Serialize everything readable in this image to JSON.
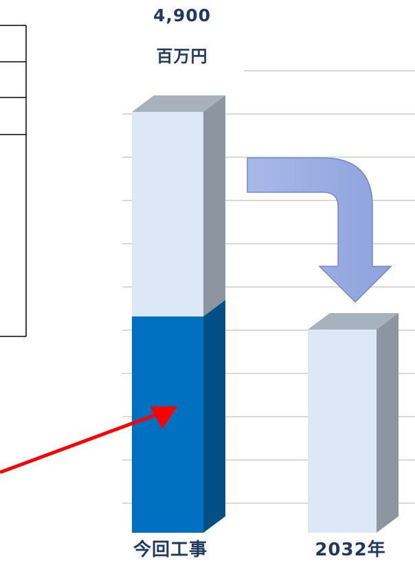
{
  "chart_data": {
    "type": "bar",
    "title": "",
    "xlabel": "",
    "ylabel": "",
    "categories": [
      "今回工事",
      "2032年"
    ],
    "bar_value_label": "4,900",
    "bar_value_unit": "百万円",
    "series": [
      {
        "values": [
          2450,
          0
        ]
      },
      {
        "values": [
          2450,
          2450
        ]
      }
    ],
    "ylim": [
      0,
      5400
    ],
    "grid": true,
    "legend": "none"
  },
  "colors": {
    "lower_segment": "#0070c0",
    "upper_segment": "#dde8f6",
    "arrow": "#8fa6dc",
    "pointer_arrow": "#ff0000",
    "gridline": "#d9d9d9",
    "table_border": "#000000"
  },
  "icons": [
    "curved-down-arrow-icon",
    "red-pointer-arrow-icon"
  ]
}
